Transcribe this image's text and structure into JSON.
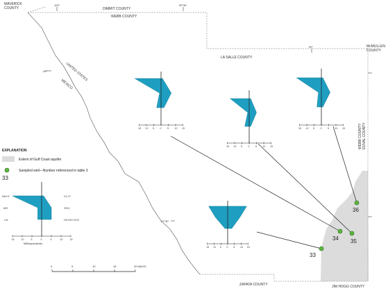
{
  "map": {
    "counties": {
      "maverick": [
        "MAVERICK",
        "COUNTY"
      ],
      "dimmit": "DIMMIT COUNTY",
      "webb_top": "WEBB COUNTY",
      "la_salle": "LA SALLE COUNTY",
      "mcmullen": [
        "McMULLEN",
        "COUNTY"
      ],
      "webb_duval": [
        "WEBB COUNTY",
        "DUVAL COUNTY"
      ],
      "zapata": "ZAPATA COUNTY",
      "jim_hogg": "JIM HOGG COUNTY"
    },
    "countries": [
      "UNITED STATES",
      "MEXICO"
    ],
    "coordinates": {
      "lon_100": "100°",
      "lon_9930": "99°30'",
      "lon_99": "99°",
      "lat_28": "28°",
      "lat_2730": "27°30'"
    }
  },
  "explanation": {
    "title": "EXPLANATION",
    "aquifer_label": "Extent of Gulf Coast aquifer",
    "well_label": "Sampled well—Number referenced in table 3",
    "well_example": "33"
  },
  "stiff_legend": {
    "left_labels": [
      "NA+K",
      "MG",
      "CA"
    ],
    "right_labels": [
      "CL+F",
      "SO4",
      "HCO3+CO3"
    ],
    "axis_ticks": [
      "15",
      "10",
      "5",
      "0",
      "5",
      "10",
      "15"
    ],
    "axis_title": "Milliequivalents"
  },
  "wells": [
    {
      "id": "33",
      "color": "#5cb83c"
    },
    {
      "id": "34",
      "color": "#5cb83c"
    },
    {
      "id": "35",
      "color": "#5cb83c"
    },
    {
      "id": "36",
      "color": "#5cb83c"
    }
  ],
  "stiff_diagrams": [
    {
      "left": [
        18,
        1,
        3
      ],
      "right": [
        1,
        7,
        2
      ],
      "ticks": [
        "15",
        "10",
        "5",
        "0",
        "5",
        "10",
        "15"
      ]
    },
    {
      "left": [
        13,
        1,
        3
      ],
      "right": [
        1,
        5,
        1
      ],
      "ticks": [
        "15",
        "10",
        "5",
        "0",
        "5",
        "10",
        "15"
      ]
    },
    {
      "left": [
        17,
        2,
        3
      ],
      "right": [
        1,
        6,
        1
      ],
      "ticks": [
        "15",
        "10",
        "5",
        "0",
        "5",
        "10",
        "15"
      ]
    },
    {
      "left": [
        14,
        9,
        2
      ],
      "right": [
        14,
        9,
        3
      ],
      "ticks": [
        "15",
        "10",
        "5",
        "0",
        "5",
        "10",
        "15"
      ]
    }
  ],
  "scale_bar": {
    "ticks": [
      "0",
      "5",
      "10",
      "15",
      "20 MILES"
    ]
  },
  "colors": {
    "stiff_fill": "#1e9fc1",
    "aquifer": "#dcdcdc",
    "boundary": "#9a9a9a",
    "river": "#7a7a7a"
  }
}
